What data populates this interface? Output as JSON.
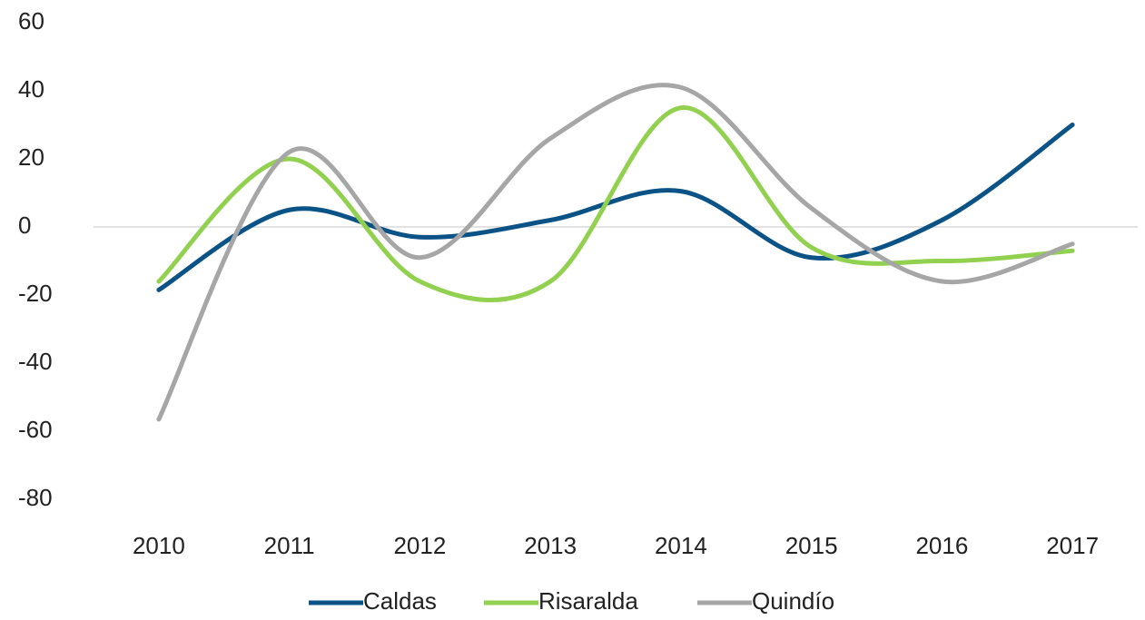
{
  "chart_data": {
    "type": "line",
    "categories": [
      "2010",
      "2011",
      "2012",
      "2013",
      "2014",
      "2015",
      "2016",
      "2017"
    ],
    "series": [
      {
        "name": "Caldas",
        "color": "#0b5386",
        "values": [
          -18.5,
          5,
          -3,
          2,
          10.5,
          -9,
          2,
          30
        ]
      },
      {
        "name": "Risaralda",
        "color": "#92d050",
        "values": [
          -16,
          20,
          -16,
          -16,
          35,
          -6,
          -10,
          -7
        ]
      },
      {
        "name": "Quindío",
        "color": "#a6a6a6",
        "values": [
          -56.5,
          22,
          -9,
          26,
          41,
          5.5,
          -16,
          -5
        ]
      }
    ],
    "ylim": [
      -80,
      60
    ],
    "yticks": [
      -80,
      -60,
      -40,
      -20,
      0,
      20,
      40,
      60
    ],
    "grid": false,
    "legend": "bottom"
  }
}
